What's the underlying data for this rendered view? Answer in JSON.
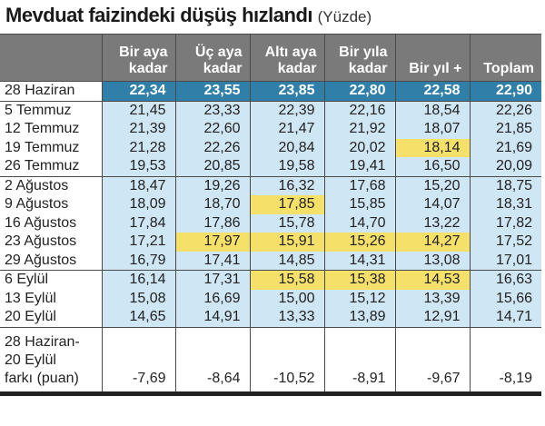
{
  "title": {
    "main": "Mevduat faizindeki düşüş hızlandı",
    "unit": "(Yüzde)"
  },
  "columns": [
    {
      "line1": "Bir aya",
      "line2": "kadar"
    },
    {
      "line1": "Üç aya",
      "line2": "kadar"
    },
    {
      "line1": "Altı aya",
      "line2": "kadar"
    },
    {
      "line1": "Bir yıla",
      "line2": "kadar"
    },
    {
      "line1": "",
      "line2": "Bir yıl +"
    },
    {
      "line1": "",
      "line2": "Toplam"
    }
  ],
  "rows": [
    {
      "label": "28 Haziran",
      "values": [
        "22,34",
        "23,55",
        "23,85",
        "22,80",
        "22,58",
        "22,90"
      ],
      "highlight": []
    },
    {
      "label": "5 Temmuz",
      "values": [
        "21,45",
        "23,33",
        "22,39",
        "22,16",
        "18,54",
        "22,26"
      ],
      "highlight": []
    },
    {
      "label": "12 Temmuz",
      "values": [
        "21,39",
        "22,60",
        "21,47",
        "21,92",
        "18,07",
        "21,85"
      ],
      "highlight": []
    },
    {
      "label": "19 Temmuz",
      "values": [
        "21,28",
        "22,26",
        "20,84",
        "20,02",
        "18,14",
        "21,69"
      ],
      "highlight": [
        4
      ]
    },
    {
      "label": "26 Temmuz",
      "values": [
        "19,53",
        "20,85",
        "19,58",
        "19,41",
        "16,50",
        "20,09"
      ],
      "highlight": []
    },
    {
      "label": "2 Ağustos",
      "values": [
        "18,47",
        "19,26",
        "16,32",
        "17,68",
        "15,20",
        "18,75"
      ],
      "highlight": []
    },
    {
      "label": "9 Ağustos",
      "values": [
        "18,09",
        "18,70",
        "17,85",
        "15,85",
        "14,07",
        "18,31"
      ],
      "highlight": [
        2
      ]
    },
    {
      "label": "16 Ağustos",
      "values": [
        "17,84",
        "17,86",
        "15,78",
        "14,70",
        "13,22",
        "17,82"
      ],
      "highlight": []
    },
    {
      "label": "23 Ağustos",
      "values": [
        "17,21",
        "17,97",
        "15,91",
        "15,26",
        "14,27",
        "17,52"
      ],
      "highlight": [
        1,
        2,
        3,
        4
      ]
    },
    {
      "label": "29 Ağustos",
      "values": [
        "16,79",
        "17,41",
        "14,85",
        "14,31",
        "13,08",
        "17,01"
      ],
      "highlight": []
    },
    {
      "label": "6 Eylül",
      "values": [
        "16,14",
        "17,31",
        "15,58",
        "15,38",
        "14,53",
        "16,63"
      ],
      "highlight": [
        2,
        3,
        4
      ]
    },
    {
      "label": "13 Eylül",
      "values": [
        "15,08",
        "16,69",
        "15,00",
        "15,12",
        "13,39",
        "15,66"
      ],
      "highlight": []
    },
    {
      "label": "20 Eylül",
      "values": [
        "14,65",
        "14,91",
        "13,33",
        "13,89",
        "12,91",
        "14,71"
      ],
      "highlight": []
    }
  ],
  "diff": {
    "label": "28 Haziran-\n20 Eylül\nfarkı (puan)",
    "values": [
      "-7,69",
      "-8,64",
      "-10,52",
      "-8,91",
      "-9,67",
      "-8,19"
    ]
  },
  "colors": {
    "header_bg": "#7a7a7a",
    "first_row_bg": "#2f7fa8",
    "cell_bg": "#cfe6f5",
    "highlight_bg": "#f5e06a"
  }
}
